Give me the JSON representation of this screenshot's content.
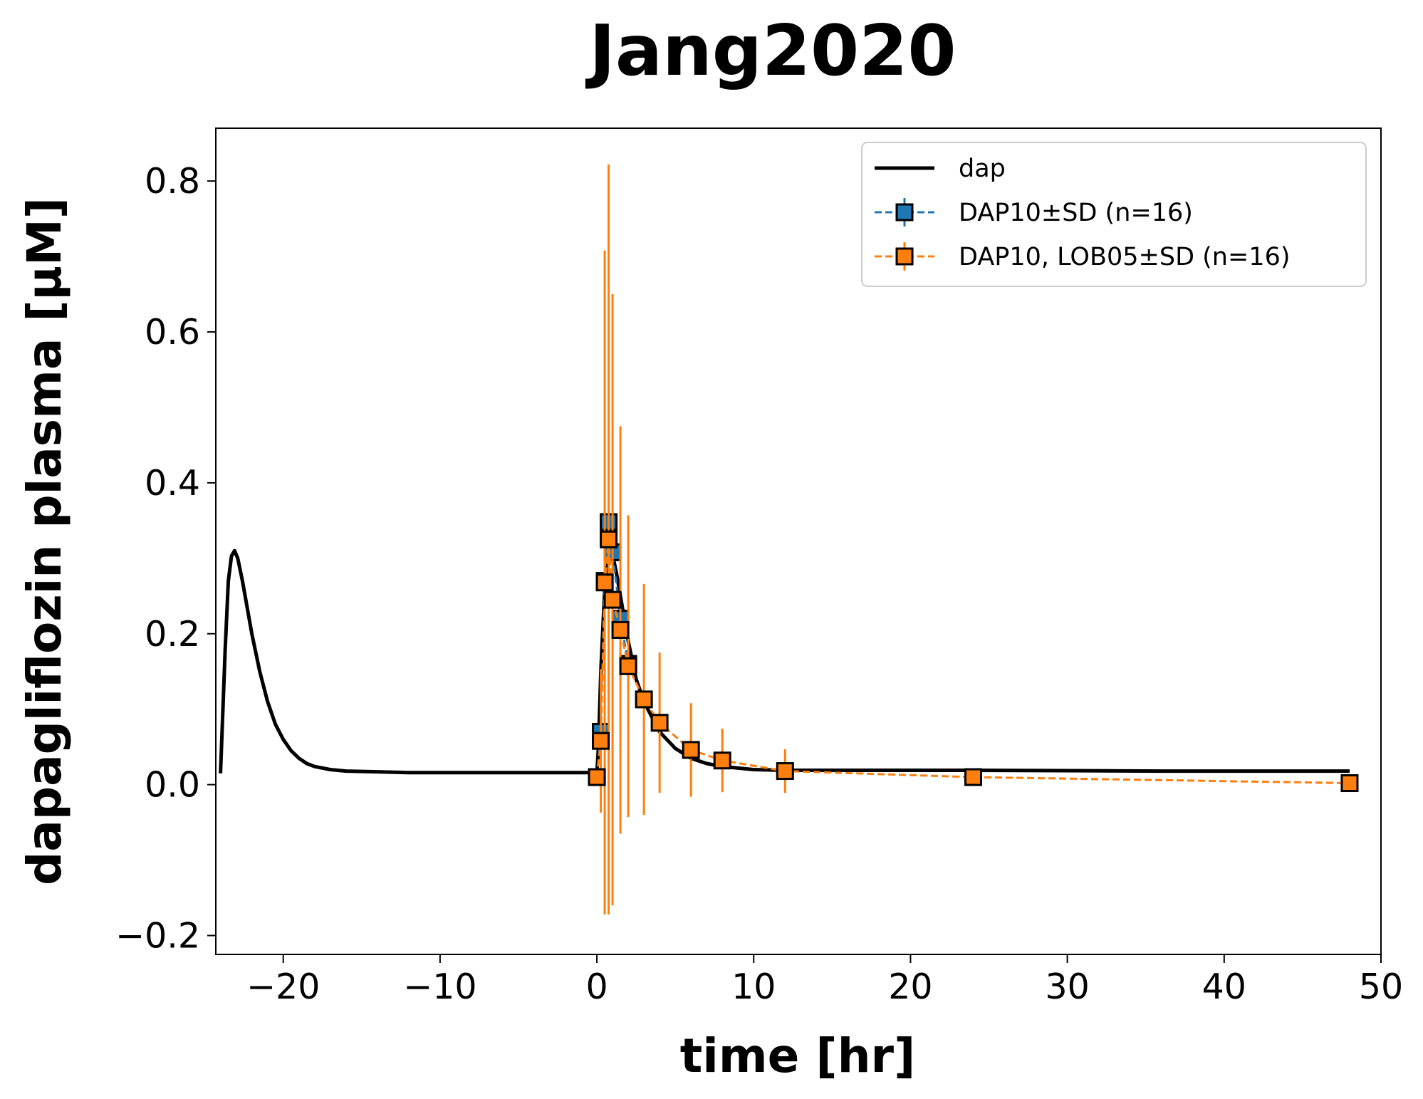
{
  "chart_data": {
    "type": "line",
    "title": "Jang2020",
    "xlabel": "time [hr]",
    "ylabel": "dapagliflozin plasma [μM]",
    "xlim": [
      -24.3,
      50
    ],
    "ylim": [
      -0.225,
      0.87
    ],
    "xticks": [
      -20,
      -10,
      0,
      10,
      20,
      30,
      40,
      50
    ],
    "xtick_labels": [
      "−20",
      "−10",
      "0",
      "10",
      "20",
      "30",
      "40",
      "50"
    ],
    "yticks": [
      -0.2,
      0.0,
      0.2,
      0.4,
      0.6,
      0.8
    ],
    "ytick_labels": [
      "−0.2",
      "0.0",
      "0.2",
      "0.4",
      "0.6",
      "0.8"
    ],
    "grid": false,
    "legend_position": "top-right",
    "series": [
      {
        "name": "dap",
        "kind": "line",
        "color": "#000000",
        "style": "solid",
        "x": [
          -24,
          -23.7,
          -23.5,
          -23.3,
          -23.1,
          -22.9,
          -22.6,
          -22.3,
          -22.0,
          -21.5,
          -21.0,
          -20.5,
          -20.0,
          -19.5,
          -19.0,
          -18.5,
          -18.0,
          -17.0,
          -16.0,
          -14.0,
          -12.0,
          -10.0,
          -5.0,
          0.0,
          0.1,
          0.25,
          0.5,
          0.75,
          1.0,
          1.25,
          1.5,
          2.0,
          2.5,
          3.0,
          4.0,
          5.0,
          6.0,
          7.0,
          8.0,
          10.0,
          12.0,
          16.0,
          24.0,
          36.0,
          48.0
        ],
        "y": [
          0.015,
          0.18,
          0.27,
          0.303,
          0.31,
          0.3,
          0.27,
          0.235,
          0.2,
          0.15,
          0.11,
          0.08,
          0.06,
          0.045,
          0.035,
          0.028,
          0.024,
          0.02,
          0.018,
          0.017,
          0.016,
          0.016,
          0.016,
          0.016,
          0.05,
          0.15,
          0.26,
          0.3,
          0.305,
          0.28,
          0.25,
          0.19,
          0.14,
          0.11,
          0.07,
          0.048,
          0.035,
          0.028,
          0.024,
          0.02,
          0.019,
          0.019,
          0.019,
          0.018,
          0.018
        ]
      },
      {
        "name": "DAP10±SD (n=16)",
        "kind": "errorbar",
        "color": "#1f77b4",
        "style": "dashed",
        "marker": "square",
        "x": [
          0.0,
          0.25,
          0.5,
          0.75,
          1.0,
          1.5,
          2.0
        ],
        "y": [
          0.01,
          0.07,
          0.27,
          0.348,
          0.308,
          0.22,
          0.16
        ],
        "sd": [
          0.0,
          0.0,
          0.0,
          0.0,
          0.0,
          0.0,
          0.0
        ]
      },
      {
        "name": "DAP10, LOB05±SD (n=16)",
        "kind": "errorbar",
        "color": "#ff7f0e",
        "style": "dashed",
        "marker": "square",
        "x": [
          0.0,
          0.25,
          0.5,
          0.75,
          1.0,
          1.5,
          2.0,
          3.0,
          4.0,
          6.0,
          8.0,
          12.0,
          24.0,
          48.0
        ],
        "y": [
          0.01,
          0.058,
          0.268,
          0.325,
          0.245,
          0.205,
          0.157,
          0.113,
          0.082,
          0.046,
          0.032,
          0.018,
          0.01,
          0.002
        ],
        "sd": [
          0.0,
          0.095,
          0.44,
          0.497,
          0.405,
          0.27,
          0.2,
          0.153,
          0.093,
          0.062,
          0.042,
          0.029,
          0.0,
          0.0
        ]
      }
    ]
  }
}
